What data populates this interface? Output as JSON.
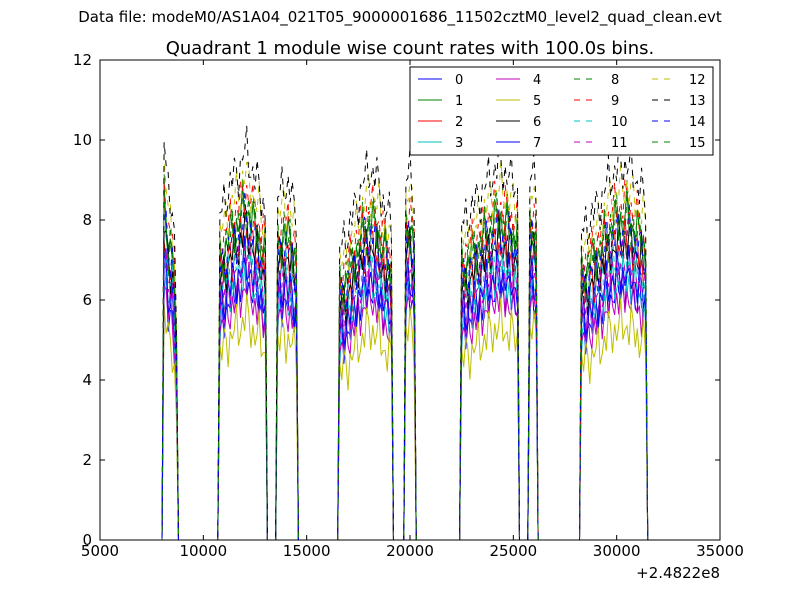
{
  "suptitle": "Data file: modeM0/AS1A04_021T05_9000001686_11502cztM0_level2_quad_clean.evt",
  "chart_data": {
    "type": "line",
    "title": "Quadrant 1 module wise count rates with 100.0s bins.",
    "xlabel": "",
    "ylabel": "",
    "x_offset_label": "+2.4822e8",
    "xlim": [
      5000,
      35000
    ],
    "ylim": [
      0,
      12
    ],
    "xticks": [
      5000,
      10000,
      15000,
      20000,
      25000,
      30000,
      35000
    ],
    "yticks": [
      0,
      2,
      4,
      6,
      8,
      10,
      12
    ],
    "grid": false,
    "legend_position": "top-right",
    "segments": [
      [
        8100,
        8700
      ],
      [
        10800,
        13000
      ],
      [
        13600,
        14500
      ],
      [
        16600,
        19100
      ],
      [
        19800,
        20200
      ],
      [
        22500,
        25200
      ],
      [
        25800,
        26100
      ],
      [
        28300,
        31400
      ]
    ],
    "segment_profiles": [
      [
        1.0,
        0.95,
        0.85,
        0.9,
        0.8,
        0.55
      ],
      [
        0.82,
        0.88,
        0.92,
        0.95,
        1.0,
        0.94,
        0.9,
        0.84
      ],
      [
        0.86,
        0.92,
        0.88,
        0.84
      ],
      [
        0.74,
        0.78,
        0.84,
        0.9,
        0.95,
        0.92,
        0.86,
        0.8
      ],
      [
        0.9,
        0.95,
        0.88
      ],
      [
        0.8,
        0.84,
        0.88,
        0.92,
        0.96,
        0.93,
        0.9
      ],
      [
        0.9,
        0.95,
        0.9
      ],
      [
        0.78,
        0.82,
        0.86,
        0.92,
        0.95,
        0.96,
        0.92,
        0.86
      ]
    ],
    "series": [
      {
        "name": "0",
        "color": "#0000ff",
        "style": "solid",
        "level": 6.6
      },
      {
        "name": "1",
        "color": "#008000",
        "style": "solid",
        "level": 8.4
      },
      {
        "name": "2",
        "color": "#ff0000",
        "style": "solid",
        "level": 7.7
      },
      {
        "name": "3",
        "color": "#00bfbf",
        "style": "solid",
        "level": 6.8
      },
      {
        "name": "4",
        "color": "#bf00bf",
        "style": "solid",
        "level": 6.4
      },
      {
        "name": "5",
        "color": "#bfbf00",
        "style": "solid",
        "level": 5.6
      },
      {
        "name": "6",
        "color": "#000000",
        "style": "solid",
        "level": 7.8
      },
      {
        "name": "7",
        "color": "#0000ff",
        "style": "solid",
        "level": 7.0
      },
      {
        "name": "8",
        "color": "#008000",
        "style": "dashed",
        "level": 8.6
      },
      {
        "name": "9",
        "color": "#ff0000",
        "style": "dashed",
        "level": 8.8
      },
      {
        "name": "10",
        "color": "#00bfbf",
        "style": "dashed",
        "level": 7.4
      },
      {
        "name": "11",
        "color": "#bf00bf",
        "style": "dashed",
        "level": 7.2
      },
      {
        "name": "12",
        "color": "#bfbf00",
        "style": "dashed",
        "level": 9.2
      },
      {
        "name": "13",
        "color": "#000000",
        "style": "dashed",
        "level": 9.8
      },
      {
        "name": "14",
        "color": "#0000ff",
        "style": "dashed",
        "level": 8.1
      },
      {
        "name": "15",
        "color": "#008000",
        "style": "dashed",
        "level": 8.3
      }
    ]
  }
}
